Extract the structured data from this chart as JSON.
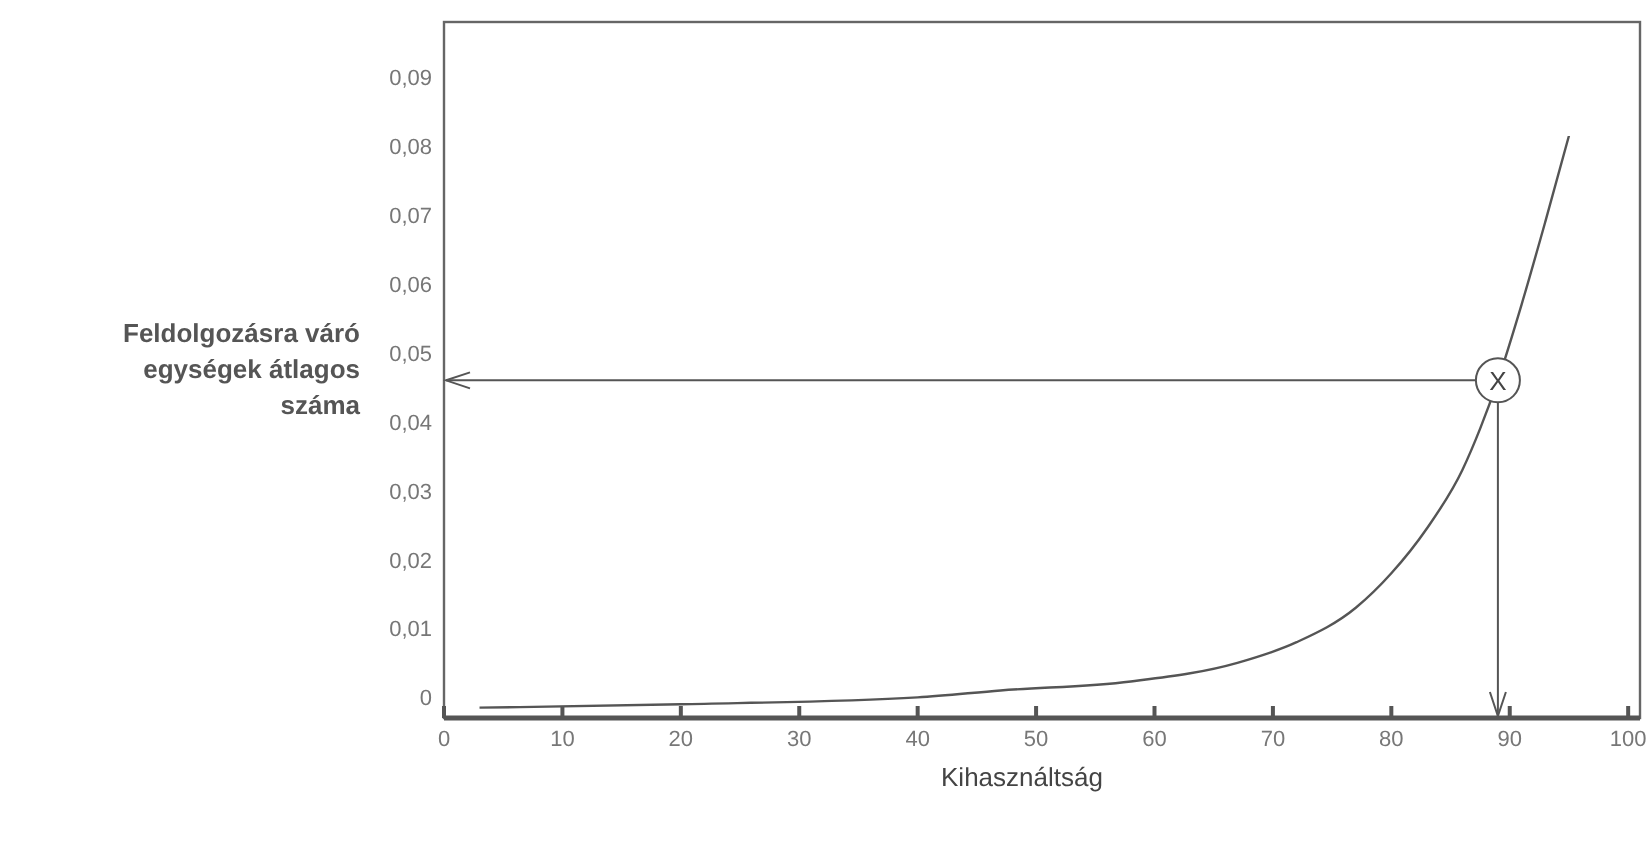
{
  "chart_data": {
    "type": "line",
    "xlabel": "Kihasználtság",
    "ylabel": "Feldolgozásra váró egységek átlagos száma",
    "x": [
      3,
      20,
      40,
      47,
      58,
      67,
      72,
      77,
      80,
      83,
      86,
      87.5,
      89,
      91,
      93,
      95
    ],
    "series": [
      {
        "color": "#555555",
        "values": [
          -0.0015,
          -0.001,
          0,
          0.001,
          0.0023,
          0.005,
          0.008,
          0.013,
          0.018,
          0.0245,
          0.033,
          0.039,
          0.046,
          0.057,
          0.069,
          0.0815
        ]
      }
    ],
    "xlim": [
      0,
      101
    ],
    "ylim": [
      -0.003,
      0.098
    ],
    "xticks": [
      0,
      10,
      20,
      30,
      40,
      50,
      60,
      70,
      80,
      90,
      100
    ],
    "yticks": [
      {
        "value": 0,
        "label": "0"
      },
      {
        "value": 0.01,
        "label": "0,01"
      },
      {
        "value": 0.02,
        "label": "0,02"
      },
      {
        "value": 0.03,
        "label": "0,03"
      },
      {
        "value": 0.04,
        "label": "0,04"
      },
      {
        "value": 0.05,
        "label": "0,05"
      },
      {
        "value": 0.06,
        "label": "0,06"
      },
      {
        "value": 0.07,
        "label": "0,07"
      },
      {
        "value": 0.08,
        "label": "0,08"
      },
      {
        "value": 0.09,
        "label": "0,09"
      }
    ],
    "annotations": [
      {
        "text": "X",
        "x": 89,
        "y": 0.046
      }
    ],
    "ref_lines": [
      {
        "axis": "y",
        "value": 0.046,
        "color": "#555555"
      },
      {
        "axis": "x",
        "value": 89,
        "color": "#555555"
      }
    ],
    "grid": false,
    "marker": "none",
    "line_style": "solid"
  }
}
